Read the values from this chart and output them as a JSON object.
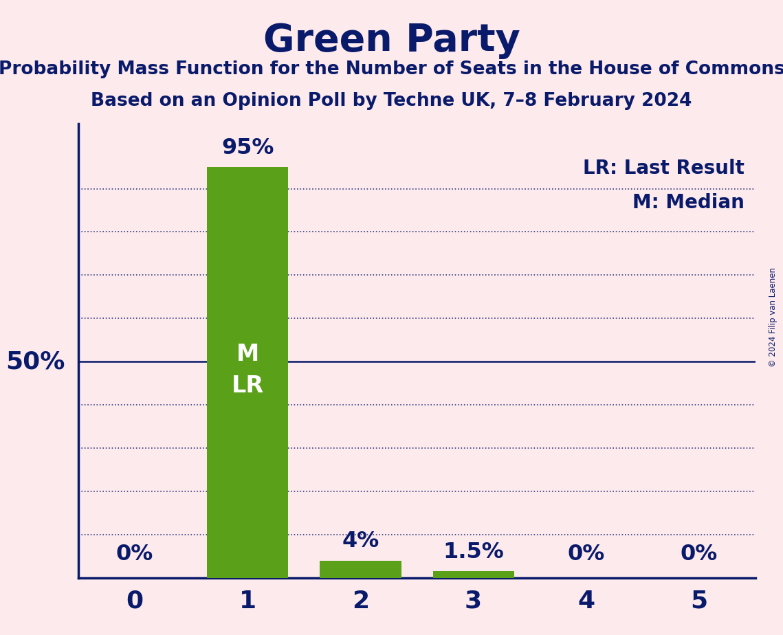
{
  "title": "Green Party",
  "subtitle1": "Probability Mass Function for the Number of Seats in the House of Commons",
  "subtitle2": "Based on an Opinion Poll by Techne UK, 7–8 February 2024",
  "copyright": "© 2024 Filip van Laenen",
  "categories": [
    0,
    1,
    2,
    3,
    4,
    5
  ],
  "values": [
    0,
    95,
    4,
    1.5,
    0,
    0
  ],
  "bar_color": "#5aA018",
  "background_color": "#FDEAEC",
  "text_color": "#0a1a6b",
  "title_fontsize": 40,
  "subtitle_fontsize": 19,
  "tick_label_fontsize": 26,
  "bar_label_fontsize": 23,
  "annotation_fontsize": 24,
  "legend_fontsize": 20,
  "ylabel_50": "50%",
  "bar_annotations": {
    "1": "M\nLR"
  },
  "bar_top_labels": {
    "0": "0%",
    "1": "95%",
    "2": "4%",
    "3": "1.5%",
    "4": "0%",
    "5": "0%"
  },
  "legend_text": [
    "LR: Last Result",
    "M: Median"
  ],
  "solid_line_y": 50,
  "grid_lines": [
    10,
    20,
    30,
    40,
    60,
    70,
    80,
    90
  ],
  "ylim": [
    0,
    105
  ],
  "xlim": [
    -0.5,
    5.5
  ],
  "bar_width": 0.72
}
